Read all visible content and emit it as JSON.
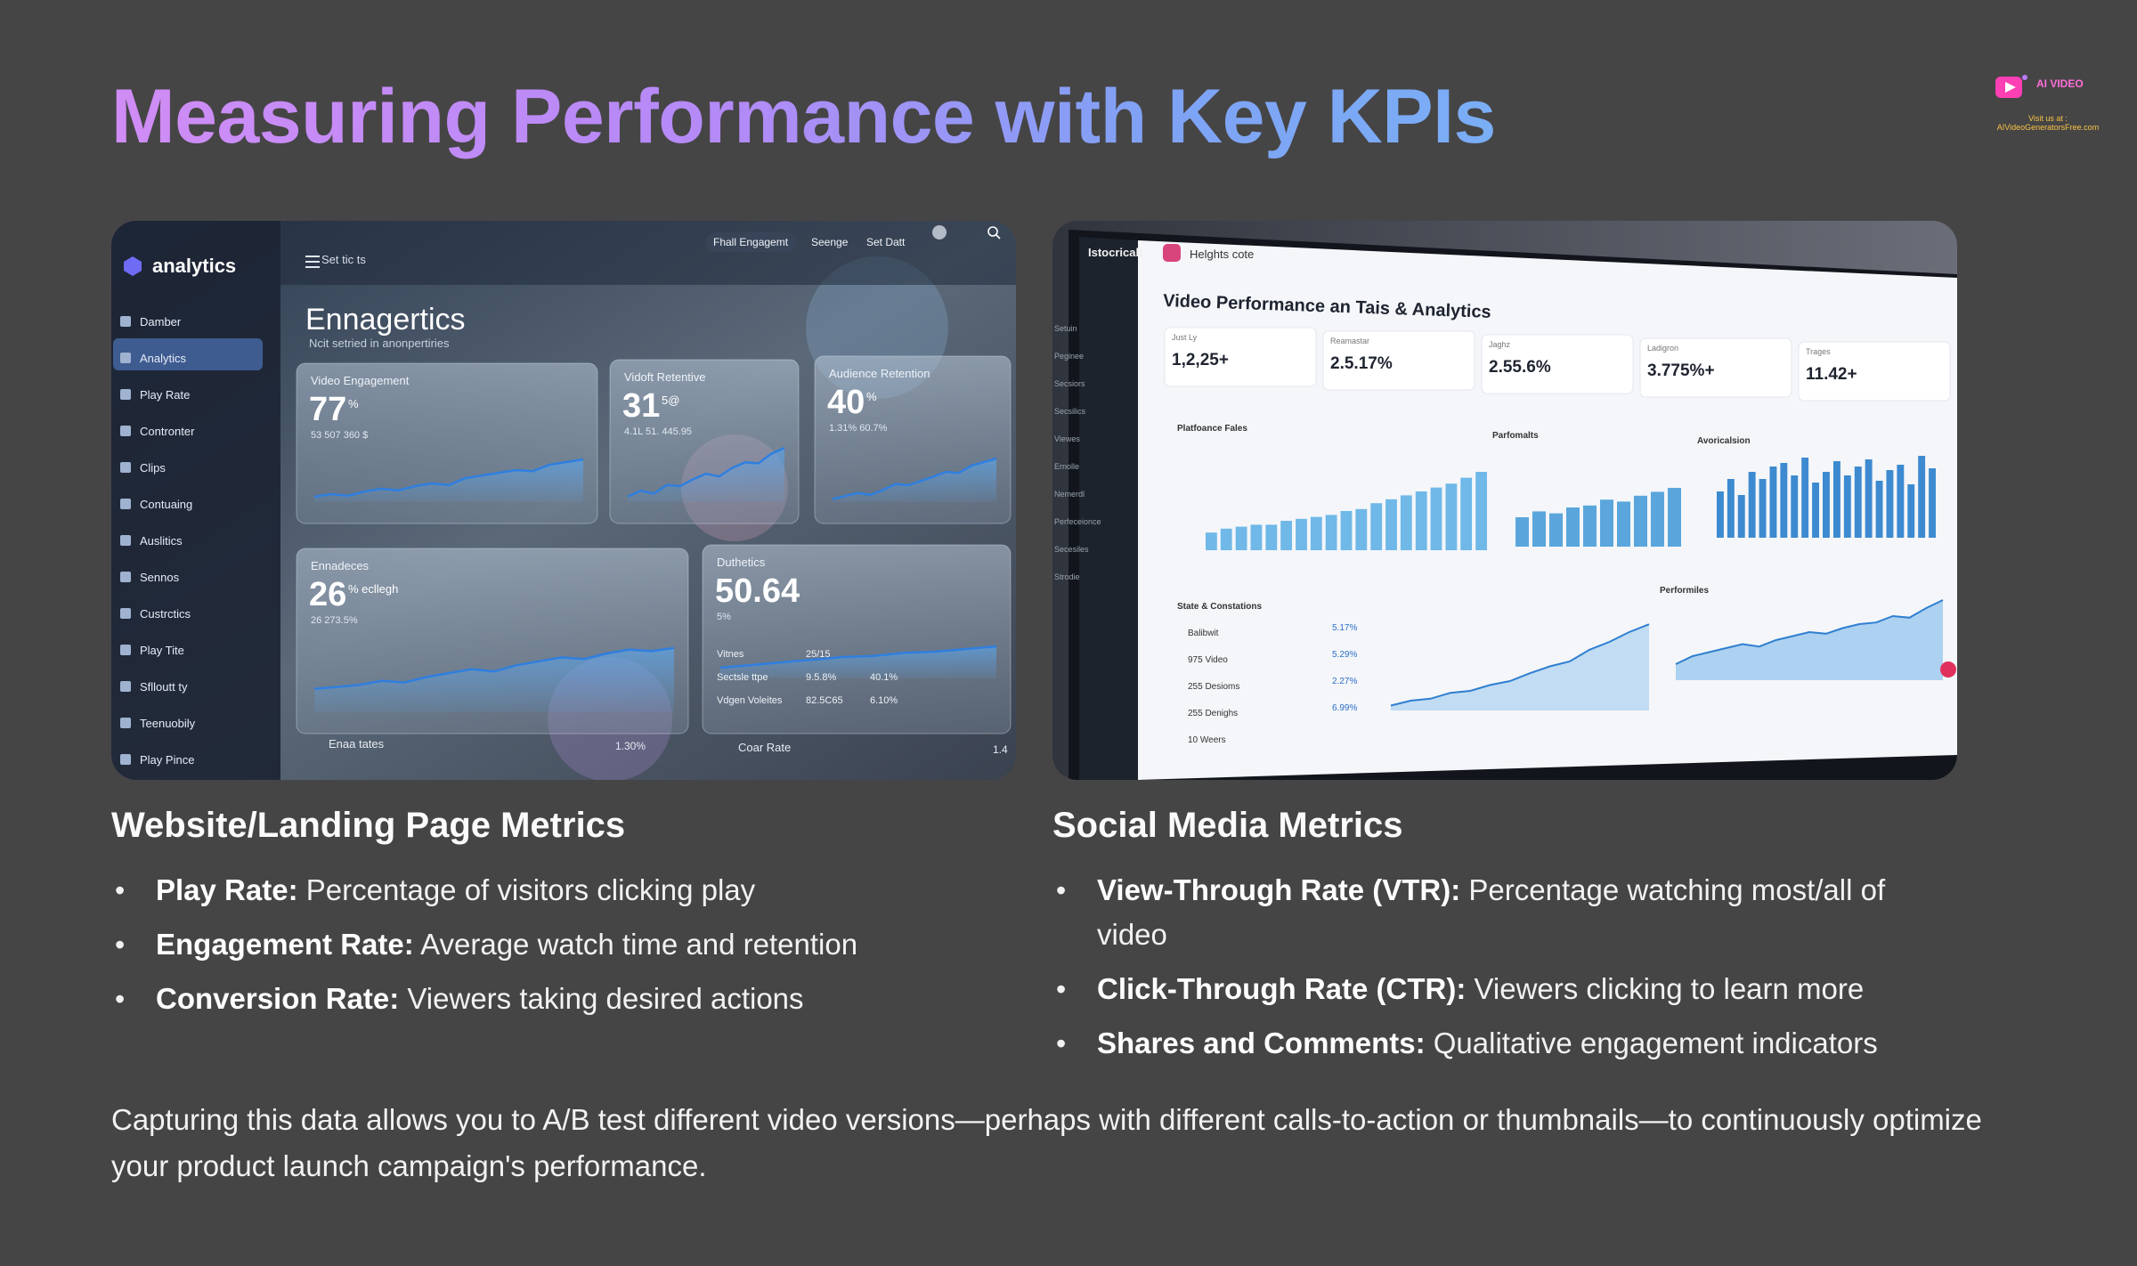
{
  "title": "Measuring Performance with Key KPIs",
  "logo": {
    "brand": "AI VIDEO",
    "visit_line1": "Visit us at :",
    "visit_line2": "AIVideoGeneratorsFree.com",
    "accent": "#ff3fb4"
  },
  "left_screen": {
    "app_name": "analytics",
    "top_label": "Set tic ts",
    "nav_buttons": [
      "Fhall Engagemt",
      "Seenge",
      "Set Datt"
    ],
    "nav": [
      "Damber",
      "Analytics",
      "Play Rate",
      "Contronter",
      "Clips",
      "Contuaing",
      "Auslitics",
      "Sennos",
      "Custrctics",
      "Play Tite",
      "Sflloutt ty",
      "Teenuobily",
      "Play Pince"
    ],
    "heading": "Ennagertics",
    "subheading": "Ncit setried in anonpertiries",
    "cards": [
      {
        "label": "Video Engagement",
        "value": "77",
        "suffix": "%",
        "note": "53 507 360 $"
      },
      {
        "label": "Vidoft Retentive",
        "value": "31",
        "suffix": "5@",
        "note": "4.1L 51. 445.95"
      },
      {
        "label": "Audience Retention",
        "value": "40",
        "suffix": "%",
        "note": "1.31% 60.7%"
      },
      {
        "label": "Ennadeces",
        "value": "26",
        "suffix": "% ecllegh",
        "note": "26 273.5%"
      },
      {
        "label": "Duthetics",
        "value": "50.64",
        "suffix": "",
        "note": "5%"
      }
    ],
    "table_rows": [
      {
        "label": "Vitnes",
        "a": "25/15"
      },
      {
        "label": "Sectsle ttpe",
        "a": "9.5.8%",
        "b": "40.1%"
      },
      {
        "label": "Vdgen Voleites",
        "a": "82.5C65",
        "b": "6.10%"
      }
    ],
    "footer_a": "Enaa tates",
    "footer_a_val": "1.30%",
    "footer_b": "Coar Rate",
    "footer_b_val": "1.4"
  },
  "right_screen": {
    "corner_label": "Istocricalt",
    "brand": "Helghts cote",
    "heading": "Video Performance an Tais & Analytics",
    "kpis": [
      {
        "label": "Just Ly",
        "value": "1,2,25+"
      },
      {
        "label": "Reamastar",
        "value": "2.5.17%"
      },
      {
        "label": "Jaghz",
        "value": "2.55.6%"
      },
      {
        "label": "Ladigron",
        "value": "3.775%+"
      },
      {
        "label": "Trages",
        "value": "11.42+"
      }
    ],
    "panel_titles": [
      "Platfoance Fales",
      "Parfomalts",
      "Avoricalsion",
      "State & Constations",
      "Performiles"
    ],
    "list_items": [
      {
        "label": "Balibwit",
        "value": "5.17%"
      },
      {
        "label": "975 Video",
        "value": "5.29%"
      },
      {
        "label": "255 Desioms",
        "value": "2.27%"
      },
      {
        "label": "255 Denighs",
        "value": "6.99%"
      },
      {
        "label": "10 Weers",
        "value": ""
      }
    ],
    "side_nav": [
      "Setuin",
      "Peginee",
      "Secsiors",
      "Secsilics",
      "Viewes",
      "Ernolle",
      "Nemerdl",
      "Perfeceionce",
      "Secesiles",
      "Strodie"
    ],
    "charts": {
      "bars_a": [
        18,
        22,
        24,
        26,
        26,
        30,
        32,
        34,
        36,
        40,
        42,
        48,
        52,
        56,
        60,
        64,
        68,
        74,
        80
      ],
      "bars_b": [
        30,
        36,
        34,
        40,
        42,
        48,
        46,
        52,
        56,
        60
      ],
      "bars_c": [
        52,
        66,
        48,
        74,
        66,
        80,
        84,
        70,
        90,
        62,
        74,
        86,
        70,
        80,
        88,
        64,
        76,
        82,
        60,
        92,
        78
      ]
    }
  },
  "sections": [
    {
      "heading": "Website/Landing Page Metrics",
      "items": [
        {
          "term": "Play Rate:",
          "desc": "Percentage of visitors clicking play"
        },
        {
          "term": "Engagement Rate:",
          "desc": "Average watch time and retention"
        },
        {
          "term": "Conversion Rate:",
          "desc": "Viewers taking desired actions"
        }
      ]
    },
    {
      "heading": "Social Media Metrics",
      "items": [
        {
          "term": "View-Through Rate (VTR):",
          "desc": "Percentage watching most/all of video"
        },
        {
          "term": "Click-Through Rate (CTR):",
          "desc": "Viewers clicking to learn more"
        },
        {
          "term": "Shares and Comments:",
          "desc": "Qualitative engagement indicators"
        }
      ]
    }
  ],
  "footer": "Capturing this data allows you to A/B test different video versions—perhaps with different calls-to-action or thumbnails—to continuously optimize your product launch campaign's performance.",
  "colors": {
    "background": "#464546",
    "title_start": "#d08cf5",
    "title_end": "#7aaef5",
    "chart_blue": "#4a90d6"
  }
}
